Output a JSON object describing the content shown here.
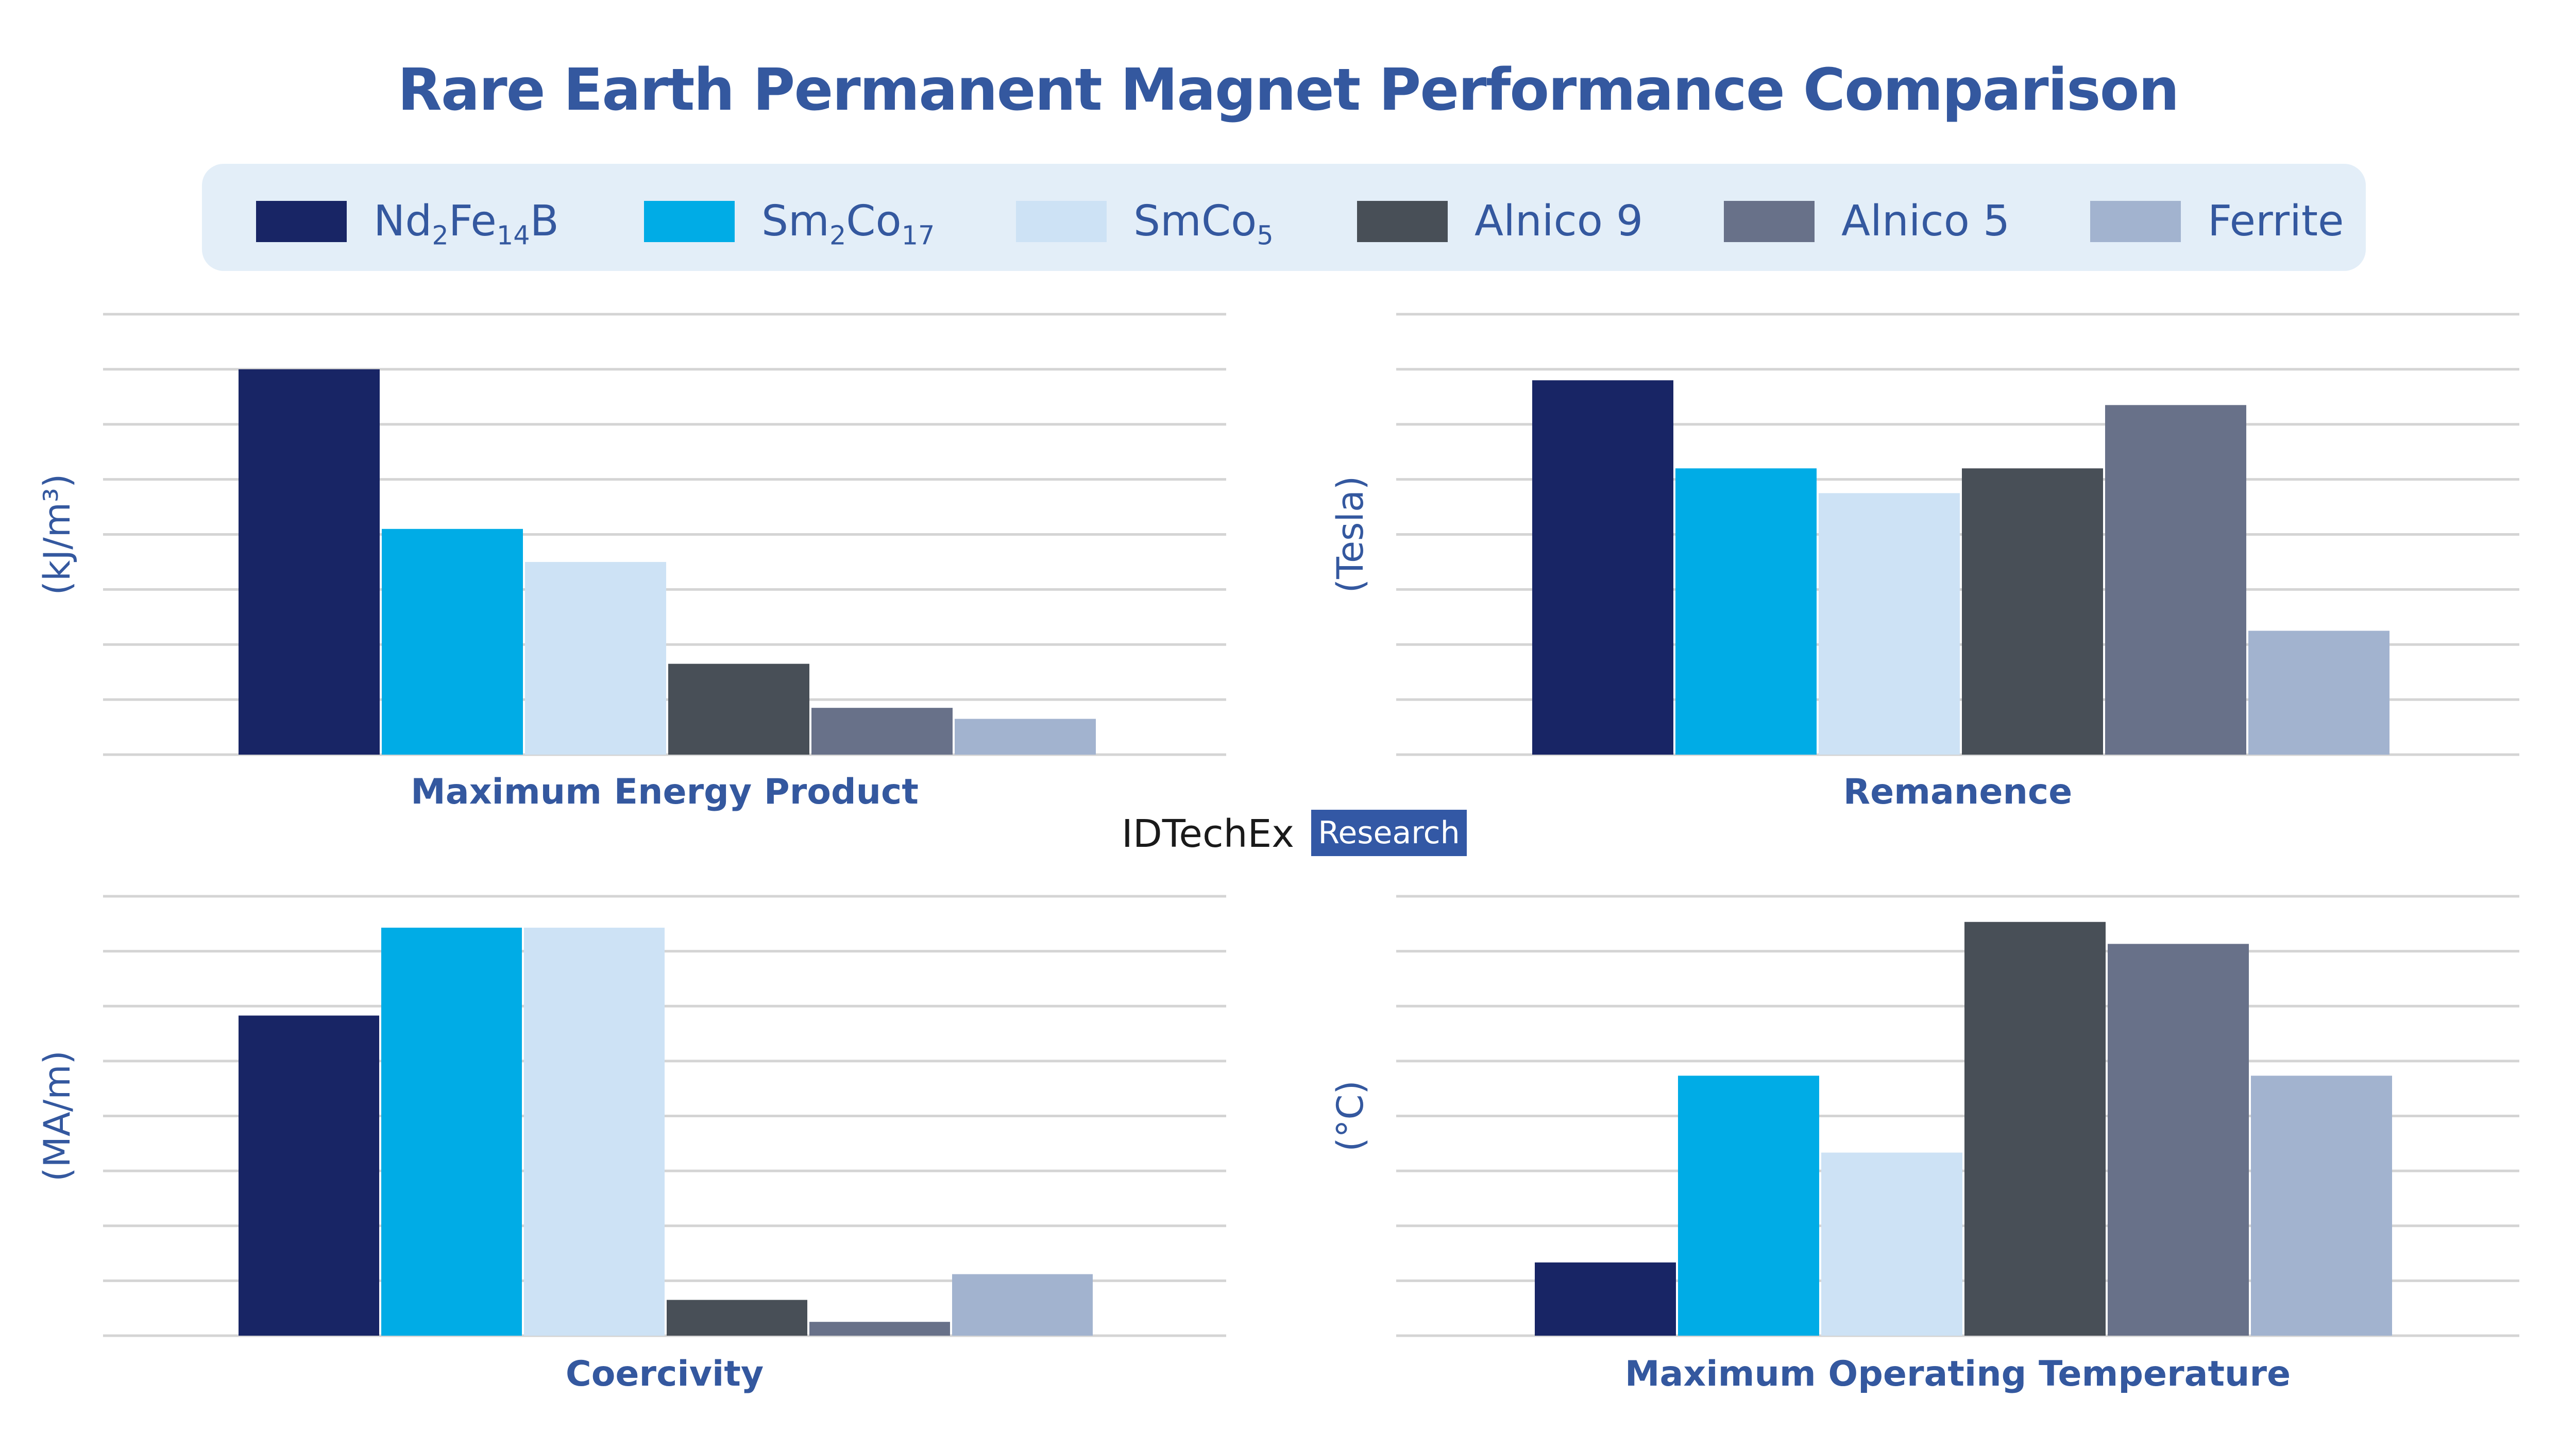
{
  "title": "Rare Earth Permanent Magnet Performance Comparison",
  "legend": [
    {
      "base": "Nd",
      "sub": "2",
      "base2": "Fe",
      "sub2": "14",
      "base3": "B",
      "color": "#182565"
    },
    {
      "base": "Sm",
      "sub": "2",
      "base2": "Co",
      "sub2": "17",
      "base3": "",
      "color": "#00ace6"
    },
    {
      "base": "SmCo",
      "sub": "5",
      "base2": "",
      "sub2": "",
      "base3": "",
      "color": "#cde2f5"
    },
    {
      "base": "Alnico 9",
      "sub": "",
      "base2": "",
      "sub2": "",
      "base3": "",
      "color": "#484f57"
    },
    {
      "base": "Alnico 5",
      "sub": "",
      "base2": "",
      "sub2": "",
      "base3": "",
      "color": "#687189"
    },
    {
      "base": "Ferrite",
      "sub": "",
      "base2": "",
      "sub2": "",
      "base3": "",
      "color": "#a2b3cf"
    }
  ],
  "watermark": {
    "brand": "IDTechEx",
    "tag": "Research"
  },
  "chart_data": [
    {
      "type": "bar",
      "title": "Maximum Energy Product",
      "ylabel": "(kJ/m³)",
      "categories": [
        "Nd2Fe14B",
        "Sm2Co17",
        "SmCo5",
        "Alnico 9",
        "Alnico 5",
        "Ferrite"
      ],
      "values": [
        7.0,
        4.1,
        3.5,
        1.65,
        0.85,
        0.65
      ],
      "ylim": [
        0,
        8
      ],
      "grid": true,
      "y_ticks_shown": false,
      "x_ticks_shown": false
    },
    {
      "type": "bar",
      "title": "Remanence",
      "ylabel": "(Tesla)",
      "categories": [
        "Nd2Fe14B",
        "Sm2Co17",
        "SmCo5",
        "Alnico 9",
        "Alnico 5",
        "Ferrite"
      ],
      "values": [
        6.8,
        5.2,
        4.75,
        5.2,
        6.35,
        2.25
      ],
      "ylim": [
        0,
        8
      ],
      "grid": true,
      "y_ticks_shown": false,
      "x_ticks_shown": false
    },
    {
      "type": "bar",
      "title": "Coercivity",
      "ylabel": "(MA/m)",
      "categories": [
        "Nd2Fe14B",
        "Sm2Co17",
        "SmCo5",
        "Alnico 9",
        "Alnico 5",
        "Ferrite"
      ],
      "values": [
        5.1,
        6.5,
        6.5,
        0.57,
        0.22,
        0.98
      ],
      "ylim": [
        0,
        7
      ],
      "grid": true,
      "y_ticks_shown": false,
      "x_ticks_shown": false
    },
    {
      "type": "bar",
      "title": "Maximum Operating Temperature",
      "ylabel": "(°C)",
      "categories": [
        "Nd2Fe14B",
        "Sm2Co17",
        "SmCo5",
        "Alnico 9",
        "Alnico 5",
        "Ferrite"
      ],
      "values": [
        1.0,
        3.55,
        2.5,
        5.65,
        5.35,
        3.55
      ],
      "ylim": [
        0,
        6
      ],
      "grid": true,
      "y_ticks_shown": false,
      "x_ticks_shown": false
    }
  ]
}
